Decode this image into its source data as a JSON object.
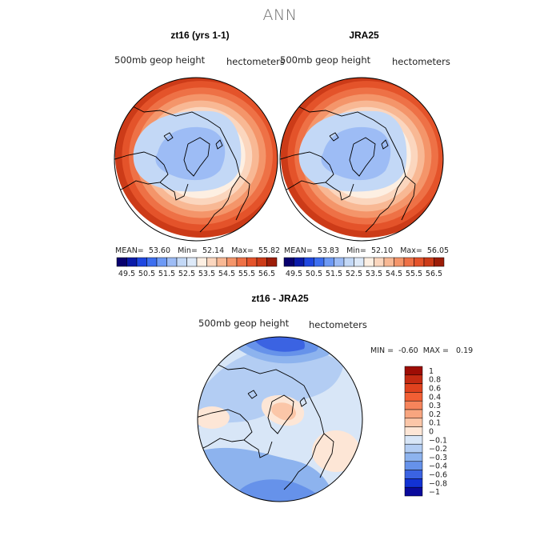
{
  "page": {
    "title": "ANN"
  },
  "chart_data": [
    {
      "type": "heatmap",
      "projection": "north polar stereographic",
      "title": "zt16 (yrs 1-1)",
      "field_label": "500mb geop height",
      "units_label": "hectometers",
      "stats": {
        "mean": "53.60",
        "min": "52.14",
        "max": "55.82"
      },
      "stats_labels": {
        "mean": "MEAN=",
        "min": "Min=",
        "max": "Max="
      },
      "levels": [
        "49.5",
        "50.5",
        "51.5",
        "52.5",
        "53.5",
        "54.5",
        "55.5",
        "56.5"
      ],
      "colors": [
        "#08006e",
        "#0a1aa8",
        "#1f47e0",
        "#3d6ff0",
        "#6e9af5",
        "#9dbcf5",
        "#c3d8f6",
        "#dde9f8",
        "#fdefe2",
        "#fbd6be",
        "#f8b894",
        "#f4956a",
        "#ee7146",
        "#e4532a",
        "#cc3b18",
        "#9c1d08"
      ],
      "grid": false,
      "legend_position": "bottom"
    },
    {
      "type": "heatmap",
      "projection": "north polar stereographic",
      "title": "JRA25",
      "field_label": "500mb geop height",
      "units_label": "hectometers",
      "stats": {
        "mean": "53.83",
        "min": "52.10",
        "max": "56.05"
      },
      "stats_labels": {
        "mean": "MEAN=",
        "min": "Min=",
        "max": "Max="
      },
      "levels": [
        "49.5",
        "50.5",
        "51.5",
        "52.5",
        "53.5",
        "54.5",
        "55.5",
        "56.5"
      ],
      "colors": [
        "#08006e",
        "#0a1aa8",
        "#1f47e0",
        "#3d6ff0",
        "#6e9af5",
        "#9dbcf5",
        "#c3d8f6",
        "#dde9f8",
        "#fdefe2",
        "#fbd6be",
        "#f8b894",
        "#f4956a",
        "#ee7146",
        "#e4532a",
        "#cc3b18",
        "#9c1d08"
      ],
      "grid": false,
      "legend_position": "bottom"
    },
    {
      "type": "heatmap",
      "projection": "north polar stereographic",
      "title": "zt16 - JRA25",
      "field_label": "500mb geop height",
      "units_label": "hectometers",
      "stats": {
        "min": "-0.60",
        "max": "0.19"
      },
      "stats_labels": {
        "min": "MIN =",
        "max": "MAX ="
      },
      "levels": [
        "1",
        "0.8",
        "0.6",
        "0.4",
        "0.3",
        "0.2",
        "0.1",
        "0",
        "-0.1",
        "-0.2",
        "-0.3",
        "-0.4",
        "-0.6",
        "-0.8",
        "-1"
      ],
      "colors": [
        "#9e0d05",
        "#c42a12",
        "#e0421e",
        "#f25f34",
        "#f6845b",
        "#f8a57f",
        "#fbc6a8",
        "#fde6d6",
        "#d8e6f7",
        "#b3cdf3",
        "#8db3ee",
        "#6692ea",
        "#3b63e2",
        "#1232d4",
        "#0a0a9c"
      ],
      "grid": false,
      "legend_position": "right"
    }
  ]
}
